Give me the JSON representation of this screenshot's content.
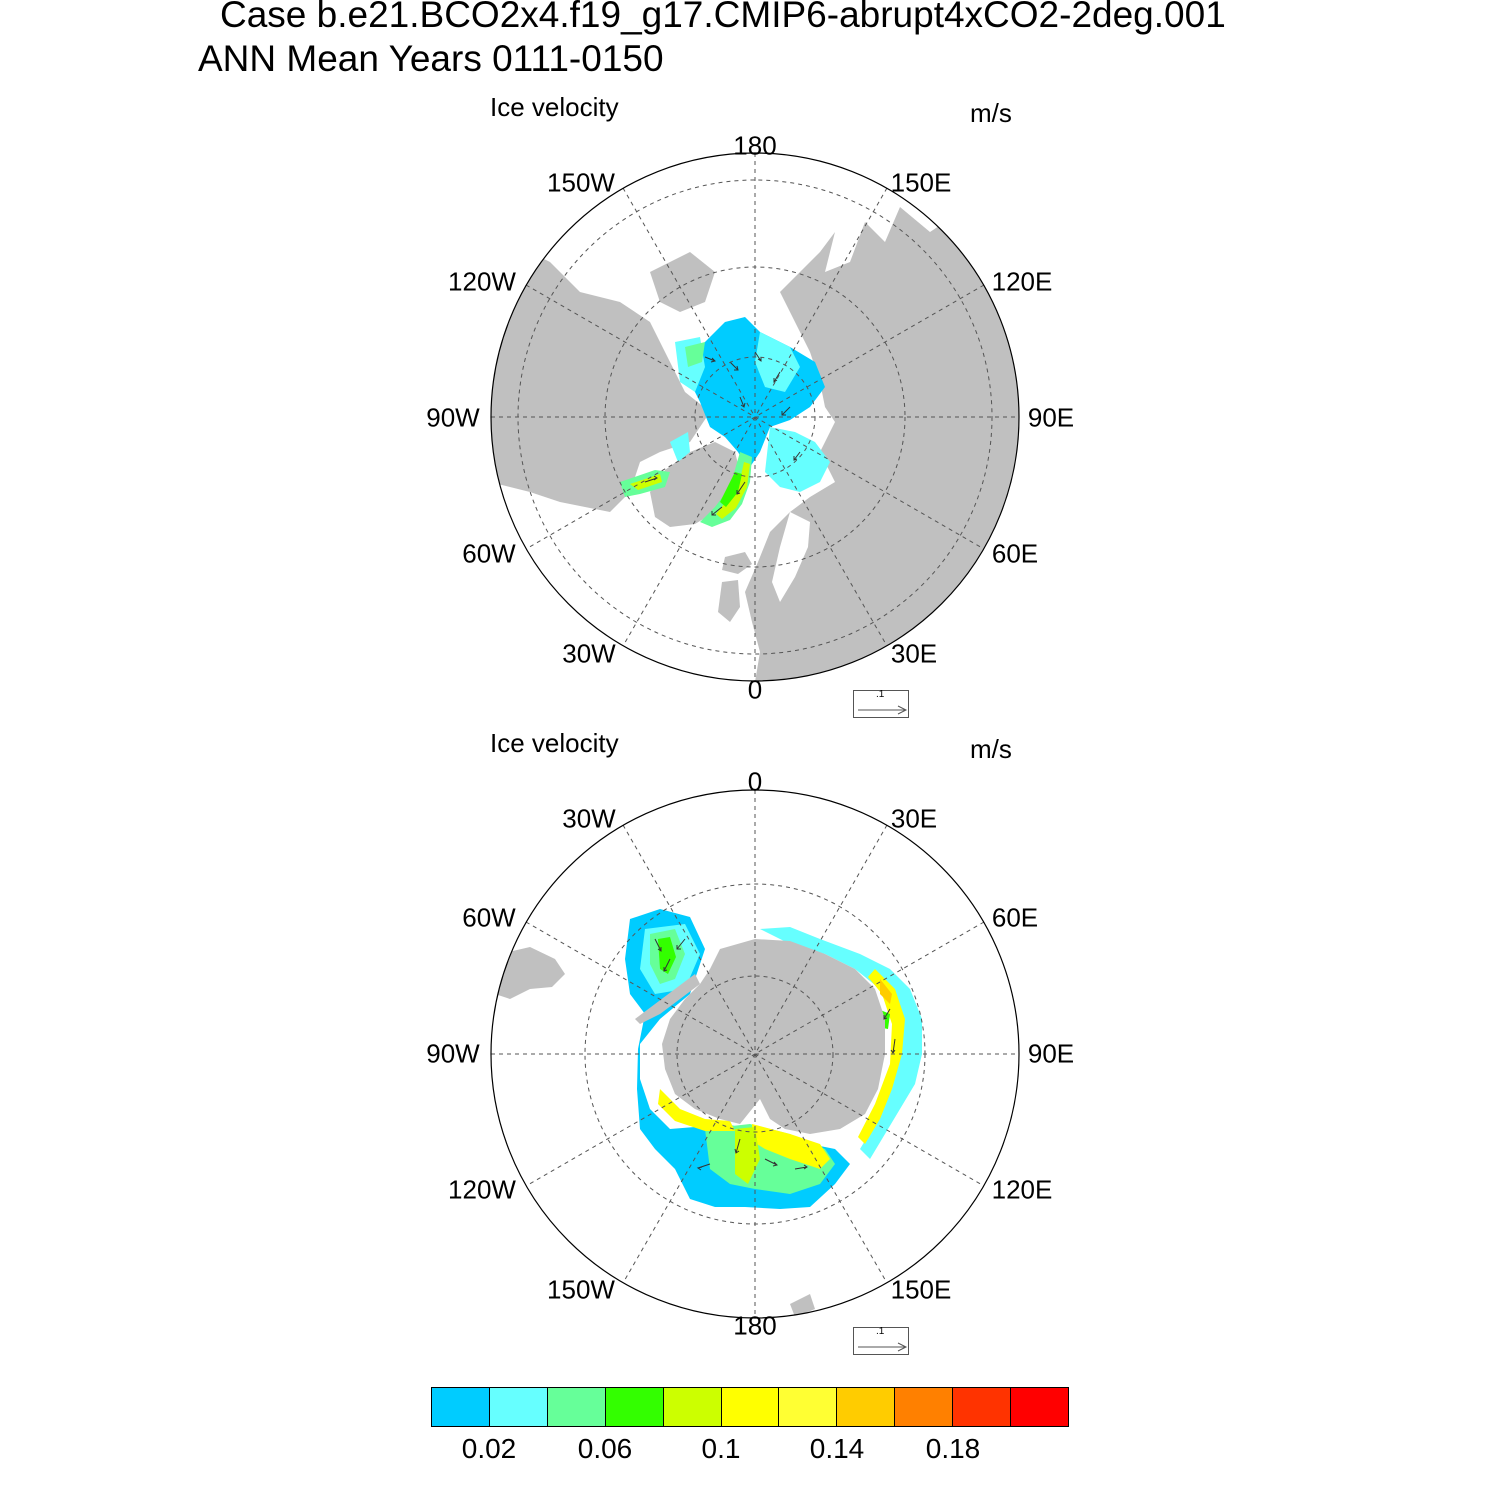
{
  "title": {
    "line1": "Case b.e21.BCO2x4.f19_g17.CMIP6-abrupt4xCO2-2deg.001",
    "line2": "ANN Mean   Years 0111-0150"
  },
  "colors": {
    "land": "#c0c0c0",
    "grid": "#555555",
    "arrow": "#333333"
  },
  "panels": [
    {
      "name": "north",
      "variable_label": "Ice velocity",
      "units_label": "m/s",
      "longitude_labels": [
        "180",
        "150E",
        "120E",
        "90E",
        "60E",
        "30E",
        "0",
        "30W",
        "60W",
        "90W",
        "120W",
        "150W"
      ],
      "reference_vector_label": ".1"
    },
    {
      "name": "south",
      "variable_label": "Ice velocity",
      "units_label": "m/s",
      "longitude_labels": [
        "0",
        "30E",
        "60E",
        "90E",
        "120E",
        "150E",
        "180",
        "150W",
        "120W",
        "90W",
        "60W",
        "30W"
      ],
      "reference_vector_label": ".1"
    }
  ],
  "colorbar": {
    "colors": [
      "#00ccff",
      "#66ffff",
      "#66ff99",
      "#33ff00",
      "#ccff00",
      "#ffff00",
      "#ffff33",
      "#ffcc00",
      "#ff8000",
      "#ff3300",
      "#ff0000"
    ],
    "tick_labels": [
      "0.02",
      "0.06",
      "0.1",
      "0.14",
      "0.18"
    ],
    "tick_values": [
      0.02,
      0.06,
      0.1,
      0.14,
      0.18
    ]
  }
}
